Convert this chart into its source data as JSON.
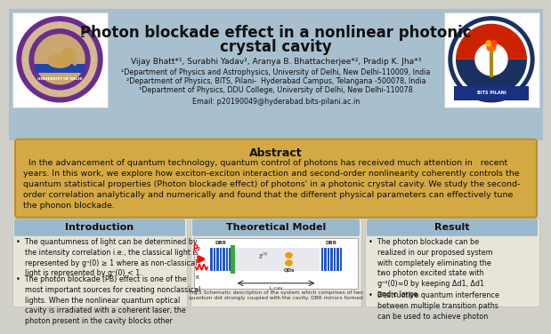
{
  "title_line1": "Photon blockade effect in a nonlinear photonic",
  "title_line2": "crystal cavity",
  "authors": "Vijay Bhatt*¹, Surabhi Yadav², Aranya B. Bhattacherjee*², Pradip K. Jha*³",
  "affil1": "¹Department of Physics and Astrophysics, University of Delhi, New Delhi-110009, India",
  "affil2": "²Department of Physics, BITS, Pilani-  Hyderabad Campus, Telangana -500078, India",
  "affil3": "³Department of Physics, DDU College, University of Delhi, New Delhi-110078",
  "email": "Email: p20190049@hyderabad.bits-pilani.ac.in",
  "header_bg": "#a8bfd0",
  "body_bg": "#d0cfc8",
  "abstract_bg": "#d4a843",
  "abstract_border": "#b8902a",
  "section_header_bg": "#9ab8cc",
  "col_bg": "#e8e4d8",
  "abstract_title": "Abstract",
  "abstract_text1": "  In the advancement of quantum technology, quantum control of photons has received much attention in   recent",
  "abstract_text2": "years. In this work, we explore how exciton-exciton interaction and second-order nonlinearity coherently controls the",
  "abstract_text3": "quantum statistical properties (Photon blockade effect) of photons' in a photonic crystal cavity. We study the second-",
  "abstract_text4": "order correlation analytically and numerically and found that the different physical parameters can effectively tune",
  "abstract_text5": "the phonon blockade.",
  "intro_title": "Introduction",
  "model_title": "Theoretical Model",
  "result_title": "Result",
  "model_caption": "Fig.1 Schematic description of the system which comprises of two\nquantum dot strongly coupled with the cavity. DBR mirrors formed",
  "intro_bullet1": "•  The quantumness of light can be determined by\n    the intensity correlation i.e., the classical light is\n    represented by gⁿ(0) ≥ 1 where as non-classical\n    light is represented by gⁿ(0) < 1.",
  "intro_bullet2": "•  The photon blockade (PB) effect is one of the\n    most important sources for creating nonclassical\n    lights. When the nonlinear quantum optical\n    cavity is irradiated with a coherent laser, the\n    photon present in the cavity blocks other",
  "result_bullet1": "•  The photon blockade can be\n    realized in our proposed system\n    with completely eliminating the\n    two photon excited state with\n    gⁿ²(0)≈0 by keeping Δd1, Δd1\n    and c large.",
  "result_bullet2": "•  Destructive quantum interference\n    between multiple transition paths\n    can be used to achieve photon"
}
